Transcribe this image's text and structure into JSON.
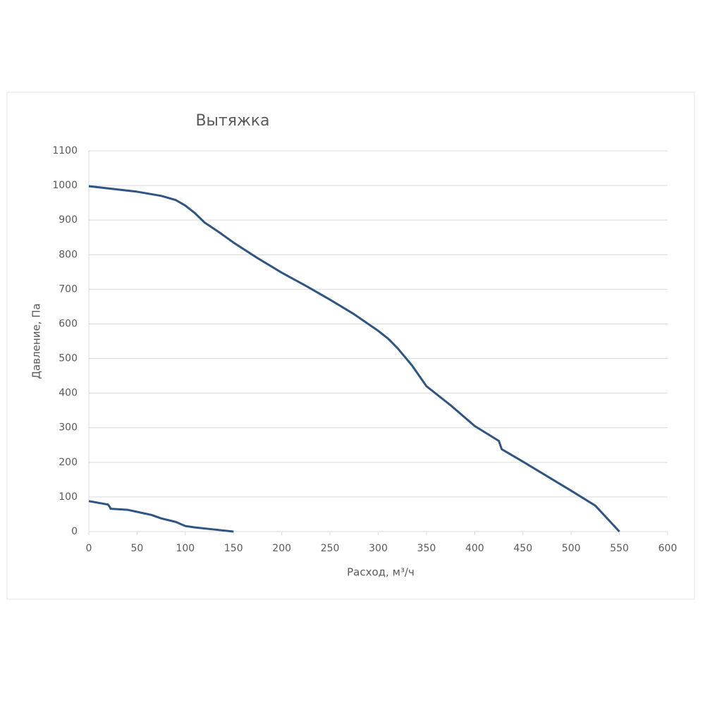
{
  "chart_data": {
    "type": "line",
    "title": "Вытяжка",
    "x_label": "Расход, м³/ч",
    "y_label": "Давление, Па",
    "xlim": [
      0,
      600
    ],
    "xticks": [
      0,
      50,
      100,
      150,
      200,
      250,
      300,
      350,
      400,
      450,
      500,
      550,
      600
    ],
    "ylim": [
      0,
      1100
    ],
    "yticks": [
      0,
      100,
      200,
      300,
      400,
      500,
      600,
      700,
      800,
      900,
      1000,
      1100
    ],
    "grid": true,
    "series": [
      {
        "color": "#2e5583",
        "x": [
          0,
          25,
          50,
          75,
          90,
          100,
          110,
          120,
          135,
          150,
          175,
          200,
          225,
          250,
          275,
          300,
          310,
          320,
          335,
          345,
          350,
          375,
          400,
          425,
          428,
          450,
          475,
          500,
          525,
          550
        ],
        "values": [
          998,
          990,
          982,
          970,
          958,
          942,
          920,
          893,
          865,
          835,
          790,
          748,
          710,
          670,
          628,
          580,
          558,
          530,
          480,
          440,
          420,
          365,
          305,
          262,
          238,
          202,
          160,
          118,
          75,
          0
        ]
      },
      {
        "color": "#2e5583",
        "x": [
          0,
          20,
          22,
          22.5,
          40,
          50,
          65,
          75,
          90,
          100,
          110,
          130,
          150
        ],
        "values": [
          88,
          78,
          70,
          66,
          63,
          57,
          48,
          38,
          28,
          16,
          12,
          6,
          0
        ]
      }
    ]
  }
}
